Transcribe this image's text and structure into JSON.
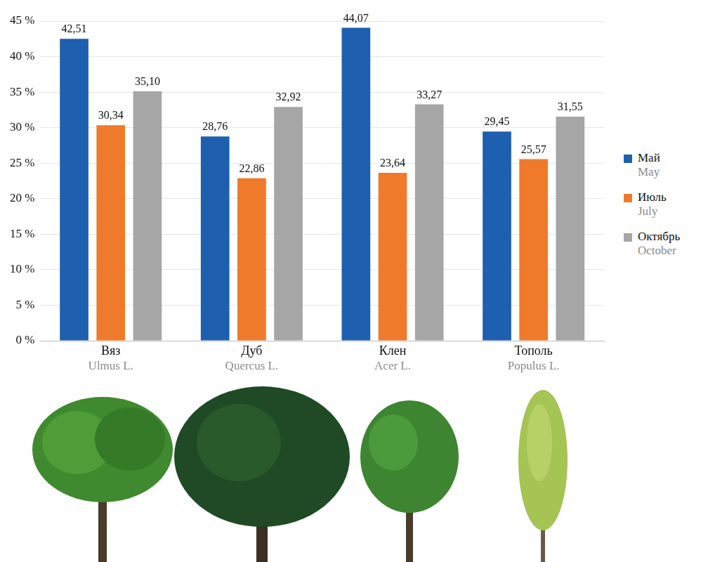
{
  "chart_data": {
    "type": "bar",
    "categories": [
      "Вяз",
      "Дуб",
      "Клен",
      "Тополь"
    ],
    "category_subtitles": [
      "Ulmus L.",
      "Quercus L.",
      "Acer L.",
      "Populus L."
    ],
    "series": [
      {
        "name": "Май",
        "subtitle": "May",
        "color": "#1f5fb0",
        "values": [
          42.51,
          28.76,
          44.07,
          29.45
        ],
        "value_labels": [
          "42,51",
          "28,76",
          "44,07",
          "29,45"
        ]
      },
      {
        "name": "Июль",
        "subtitle": "July",
        "color": "#f07a2b",
        "values": [
          30.34,
          22.86,
          23.64,
          25.57
        ],
        "value_labels": [
          "30,34",
          "22,86",
          "23,64",
          "25,57"
        ]
      },
      {
        "name": "Октябрь",
        "subtitle": "October",
        "color": "#a6a6a6",
        "values": [
          35.1,
          32.92,
          33.27,
          31.55
        ],
        "value_labels": [
          "35,10",
          "32,92",
          "33,27",
          "31,55"
        ]
      }
    ],
    "ylim": [
      0,
      45
    ],
    "yticks": [
      {
        "value": 0,
        "label": "0 %"
      },
      {
        "value": 5,
        "label": "5 %"
      },
      {
        "value": 10,
        "label": "10 %"
      },
      {
        "value": 15,
        "label": "15 %"
      },
      {
        "value": 20,
        "label": "20 %"
      },
      {
        "value": 25,
        "label": "25 %"
      },
      {
        "value": 30,
        "label": "30 %"
      },
      {
        "value": 35,
        "label": "35 %"
      },
      {
        "value": 40,
        "label": "40 %"
      },
      {
        "value": 45,
        "label": "45 %"
      }
    ],
    "grid": true,
    "legend": "right",
    "data_labels": true
  }
}
